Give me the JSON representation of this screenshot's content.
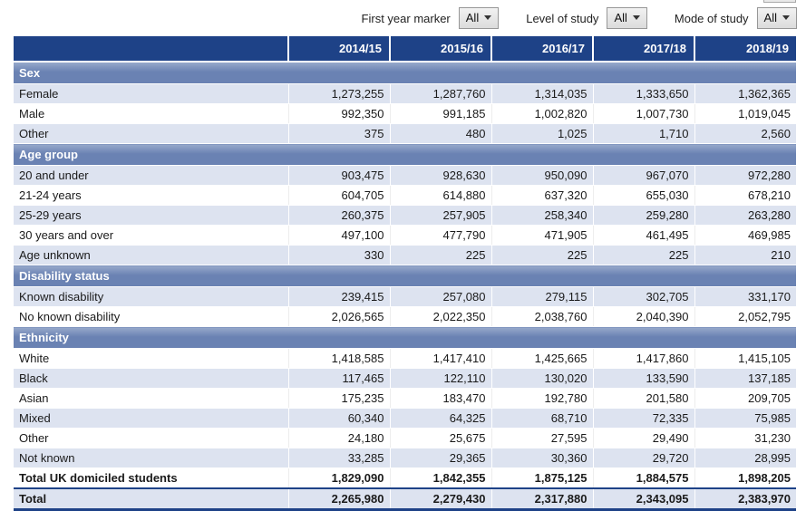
{
  "colors": {
    "header_bg": "#1e4287",
    "section_bg": "#6a82b3",
    "section_bg_top": "#97a9cb",
    "row_shade": "#dde3f0"
  },
  "filters": [
    {
      "label": "First year marker",
      "value": "All"
    },
    {
      "label": "Level of study",
      "value": "All"
    },
    {
      "label": "Mode of study",
      "value": "All"
    }
  ],
  "table": {
    "year_columns": [
      "2014/15",
      "2015/16",
      "2016/17",
      "2017/18",
      "2018/19"
    ],
    "sections": [
      {
        "title": "Sex",
        "rows": [
          {
            "label": "Female",
            "values": [
              "1,273,255",
              "1,287,760",
              "1,314,035",
              "1,333,650",
              "1,362,365"
            ]
          },
          {
            "label": "Male",
            "values": [
              "992,350",
              "991,185",
              "1,002,820",
              "1,007,730",
              "1,019,045"
            ]
          },
          {
            "label": "Other",
            "values": [
              "375",
              "480",
              "1,025",
              "1,710",
              "2,560"
            ]
          }
        ]
      },
      {
        "title": "Age group",
        "rows": [
          {
            "label": "20 and under",
            "values": [
              "903,475",
              "928,630",
              "950,090",
              "967,070",
              "972,280"
            ]
          },
          {
            "label": "21-24 years",
            "values": [
              "604,705",
              "614,880",
              "637,320",
              "655,030",
              "678,210"
            ]
          },
          {
            "label": "25-29 years",
            "values": [
              "260,375",
              "257,905",
              "258,340",
              "259,280",
              "263,280"
            ]
          },
          {
            "label": "30 years and over",
            "values": [
              "497,100",
              "477,790",
              "471,905",
              "461,495",
              "469,985"
            ]
          },
          {
            "label": "Age unknown",
            "values": [
              "330",
              "225",
              "225",
              "225",
              "210"
            ]
          }
        ]
      },
      {
        "title": "Disability status",
        "rows": [
          {
            "label": "Known disability",
            "values": [
              "239,415",
              "257,080",
              "279,115",
              "302,705",
              "331,170"
            ]
          },
          {
            "label": "No known disability",
            "values": [
              "2,026,565",
              "2,022,350",
              "2,038,760",
              "2,040,390",
              "2,052,795"
            ]
          }
        ]
      },
      {
        "title": "Ethnicity",
        "rows": [
          {
            "label": "White",
            "values": [
              "1,418,585",
              "1,417,410",
              "1,425,665",
              "1,417,860",
              "1,415,105"
            ]
          },
          {
            "label": "Black",
            "values": [
              "117,465",
              "122,110",
              "130,020",
              "133,590",
              "137,185"
            ]
          },
          {
            "label": "Asian",
            "values": [
              "175,235",
              "183,470",
              "192,780",
              "201,580",
              "209,705"
            ]
          },
          {
            "label": "Mixed",
            "values": [
              "60,340",
              "64,325",
              "68,710",
              "72,335",
              "75,985"
            ]
          },
          {
            "label": "Other",
            "values": [
              "24,180",
              "25,675",
              "27,595",
              "29,490",
              "31,230"
            ]
          },
          {
            "label": "Not known",
            "values": [
              "33,285",
              "29,365",
              "30,360",
              "29,720",
              "28,995"
            ]
          }
        ]
      }
    ],
    "total_rows": [
      {
        "label": "Total UK domiciled students",
        "values": [
          "1,829,090",
          "1,842,355",
          "1,875,125",
          "1,884,575",
          "1,898,205"
        ]
      },
      {
        "label": "Total",
        "values": [
          "2,265,980",
          "2,279,430",
          "2,317,880",
          "2,343,095",
          "2,383,970"
        ]
      }
    ]
  }
}
